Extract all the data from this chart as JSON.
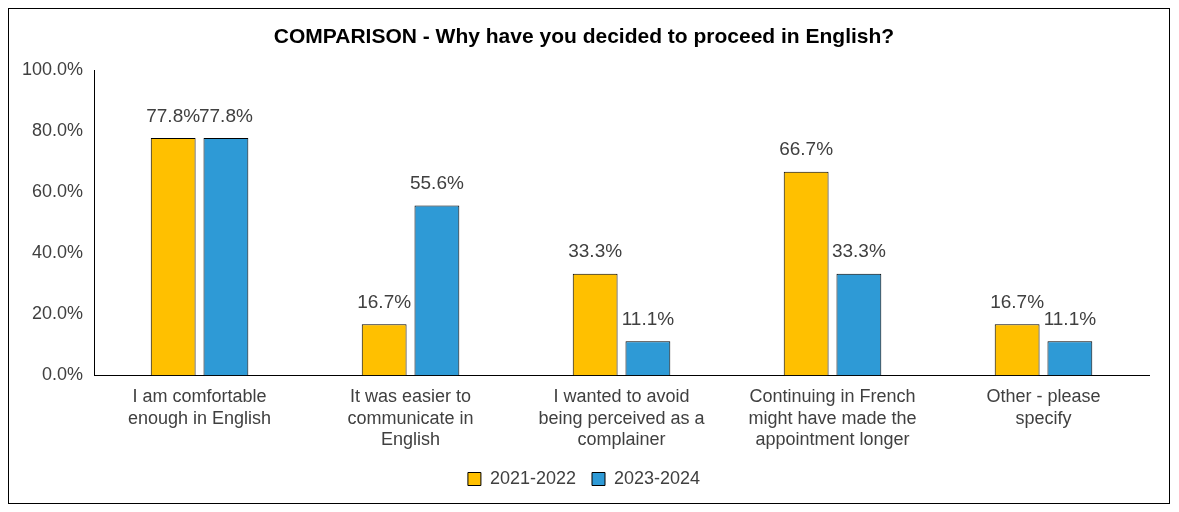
{
  "chart_data": {
    "type": "bar",
    "title": "COMPARISON - Why have you decided to proceed in English?",
    "categories": [
      "I am comfortable enough in English",
      "It was easier to communicate in English",
      "I wanted to avoid being perceived as a complainer",
      "Continuing in French might have made the appointment longer",
      "Other - please specify"
    ],
    "series": [
      {
        "name": "2021-2022",
        "color": "#ffc000",
        "values": [
          77.8,
          16.7,
          33.3,
          66.7,
          16.7
        ],
        "value_labels": [
          "77.8%",
          "16.7%",
          "33.3%",
          "66.7%",
          "16.7%"
        ]
      },
      {
        "name": "2023-2024",
        "color": "#2e9ad6",
        "values": [
          77.8,
          55.6,
          11.1,
          33.3,
          11.1
        ],
        "value_labels": [
          "77.8%",
          "55.6%",
          "11.1%",
          "33.3%",
          "11.1%"
        ]
      }
    ],
    "ylim": [
      0,
      100
    ],
    "yticks": [
      {
        "value": 0,
        "label": "0.0%"
      },
      {
        "value": 20,
        "label": "20.0%"
      },
      {
        "value": 40,
        "label": "40.0%"
      },
      {
        "value": 60,
        "label": "60.0%"
      },
      {
        "value": 80,
        "label": "80.0%"
      },
      {
        "value": 100,
        "label": "100.0%"
      }
    ],
    "grid": false,
    "legend": "bottom"
  }
}
